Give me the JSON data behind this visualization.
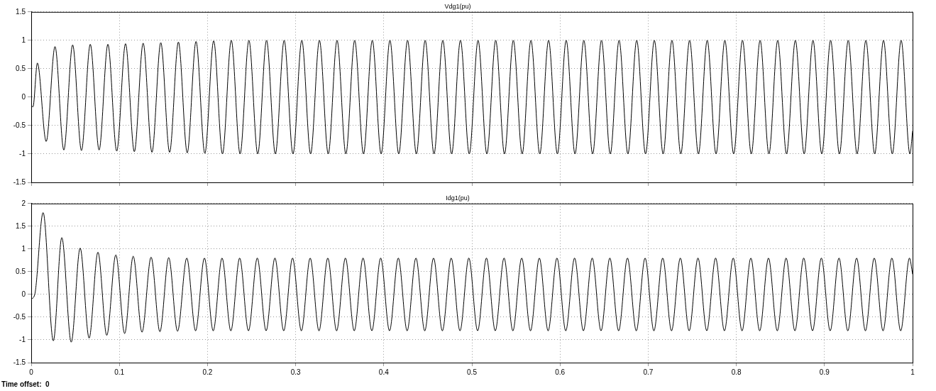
{
  "chart_data": [
    {
      "type": "line",
      "title": "Vdg1(pu)",
      "xlim": [
        0,
        1
      ],
      "xticks": [
        0,
        0.1,
        0.2,
        0.3,
        0.4,
        0.5,
        0.6,
        0.7,
        0.8,
        0.9,
        1
      ],
      "ylim": [
        -1.5,
        1.5
      ],
      "yticks": [
        -1.5,
        -1,
        -0.5,
        0,
        0.5,
        1,
        1.5
      ],
      "grid": true,
      "tick_labels": "y",
      "line_style": "solid",
      "series": [
        {
          "color": "#000000",
          "x": [
            0,
            0.002,
            0.007,
            0.017,
            0.027,
            0.037,
            0.047,
            0.057,
            0.067,
            0.077,
            0.087,
            0.097,
            0.107,
            0.117,
            0.127,
            0.137,
            0.147,
            0.157,
            0.167,
            0.177,
            0.187,
            0.197,
            0.207,
            0.217,
            0.227,
            0.237,
            0.247,
            0.257,
            0.267,
            0.277,
            0.287,
            0.297,
            0.307,
            0.317,
            0.327,
            0.337,
            0.347,
            0.357,
            0.367,
            0.377,
            0.387,
            0.397,
            0.407,
            0.417,
            0.427,
            0.437,
            0.447,
            0.457,
            0.467,
            0.477,
            0.487,
            0.497,
            0.507,
            0.517,
            0.527,
            0.537,
            0.547,
            0.557,
            0.567,
            0.577,
            0.587,
            0.597,
            0.607,
            0.617,
            0.627,
            0.637,
            0.647,
            0.657,
            0.667,
            0.677,
            0.687,
            0.697,
            0.707,
            0.717,
            0.727,
            0.737,
            0.747,
            0.757,
            0.767,
            0.777,
            0.787,
            0.797,
            0.807,
            0.817,
            0.827,
            0.837,
            0.847,
            0.857,
            0.867,
            0.877,
            0.887,
            0.897,
            0.907,
            0.917,
            0.927,
            0.937,
            0.947,
            0.957,
            0.967,
            0.977,
            0.987,
            0.997,
            1
          ],
          "values": [
            -0.15,
            -0.17,
            0.6,
            -0.78,
            0.89,
            -0.93,
            0.92,
            -0.94,
            0.93,
            -0.93,
            0.93,
            -0.95,
            0.94,
            -0.96,
            0.95,
            -0.97,
            0.96,
            -0.97,
            0.97,
            -0.98,
            0.98,
            -0.99,
            0.99,
            -1,
            1,
            -1,
            1,
            -1,
            1,
            -1,
            1,
            -1,
            1,
            -1,
            1,
            -1,
            1,
            -1,
            1,
            -1,
            1,
            -1,
            1,
            -1,
            1,
            -1,
            1,
            -1,
            1,
            -1,
            1,
            -1,
            1,
            -1,
            1,
            -1,
            1,
            -1,
            1,
            -1,
            1,
            -1,
            1,
            -1,
            1,
            -1,
            1,
            -1,
            1,
            -1,
            1,
            -1,
            1,
            -1,
            1,
            -1,
            1,
            -1,
            1,
            -1,
            1,
            -1,
            1,
            -1,
            1,
            -1,
            1,
            -1,
            1,
            -1,
            1,
            -1,
            1,
            -1,
            1,
            -1,
            1,
            -1,
            1,
            -1,
            1,
            -1,
            -0.6
          ]
        }
      ]
    },
    {
      "type": "line",
      "title": "Idg1(pu)",
      "xlim": [
        0,
        1
      ],
      "xticks": [
        0,
        0.1,
        0.2,
        0.3,
        0.4,
        0.5,
        0.6,
        0.7,
        0.8,
        0.9,
        1
      ],
      "ylim": [
        -1.5,
        2
      ],
      "yticks": [
        -1.5,
        -1,
        -0.5,
        0,
        0.5,
        1,
        1.5,
        2
      ],
      "grid": true,
      "line_style": "solid",
      "annotations": [
        "Time offset:  0"
      ],
      "series": [
        {
          "color": "#000000",
          "x": [
            0,
            0.004,
            0.0135,
            0.0251,
            0.0347,
            0.0454,
            0.0555,
            0.0657,
            0.0757,
            0.0857,
            0.096,
            0.106,
            0.1157,
            0.1257,
            0.136,
            0.146,
            0.156,
            0.166,
            0.1765,
            0.1865,
            0.1965,
            0.2065,
            0.2165,
            0.2265,
            0.2365,
            0.2465,
            0.2565,
            0.2665,
            0.2765,
            0.2865,
            0.2965,
            0.3065,
            0.3165,
            0.3265,
            0.3365,
            0.3465,
            0.3565,
            0.3665,
            0.3765,
            0.3865,
            0.3965,
            0.4065,
            0.4165,
            0.4265,
            0.4365,
            0.4465,
            0.4565,
            0.4665,
            0.4765,
            0.4865,
            0.4965,
            0.5065,
            0.5165,
            0.5265,
            0.5365,
            0.5465,
            0.5565,
            0.5665,
            0.5765,
            0.5865,
            0.5965,
            0.6065,
            0.6165,
            0.6265,
            0.6365,
            0.6465,
            0.6565,
            0.6665,
            0.6765,
            0.6865,
            0.6965,
            0.7065,
            0.7165,
            0.7265,
            0.7365,
            0.7465,
            0.7565,
            0.7665,
            0.7765,
            0.7865,
            0.7965,
            0.8065,
            0.8165,
            0.8265,
            0.8365,
            0.8465,
            0.8565,
            0.8665,
            0.8765,
            0.8865,
            0.8965,
            0.9065,
            0.9165,
            0.9265,
            0.9365,
            0.9465,
            0.9565,
            0.9665,
            0.9765,
            0.9865,
            0.9965,
            1
          ],
          "values": [
            -0.1,
            0,
            1.8,
            -1.02,
            1.25,
            -1.05,
            1.02,
            -0.96,
            0.93,
            -0.9,
            0.87,
            -0.86,
            0.84,
            -0.83,
            0.82,
            -0.82,
            0.81,
            -0.81,
            0.8,
            -0.8,
            0.8,
            -0.8,
            0.8,
            -0.8,
            0.8,
            -0.8,
            0.8,
            -0.8,
            0.8,
            -0.8,
            0.8,
            -0.8,
            0.8,
            -0.8,
            0.8,
            -0.8,
            0.8,
            -0.8,
            0.8,
            -0.8,
            0.8,
            -0.8,
            0.8,
            -0.8,
            0.8,
            -0.8,
            0.8,
            -0.8,
            0.8,
            -0.8,
            0.8,
            -0.8,
            0.8,
            -0.8,
            0.8,
            -0.8,
            0.8,
            -0.8,
            0.8,
            -0.8,
            0.8,
            -0.8,
            0.8,
            -0.8,
            0.8,
            -0.8,
            0.8,
            -0.8,
            0.8,
            -0.8,
            0.8,
            -0.8,
            0.8,
            -0.8,
            0.8,
            -0.8,
            0.8,
            -0.8,
            0.8,
            -0.8,
            0.8,
            -0.8,
            0.8,
            -0.8,
            0.8,
            -0.8,
            0.8,
            -0.8,
            0.8,
            -0.8,
            0.8,
            -0.8,
            0.8,
            -0.8,
            0.8,
            -0.8,
            0.8,
            -0.8,
            0.8,
            -0.8,
            0.8,
            0.45
          ]
        }
      ]
    }
  ]
}
